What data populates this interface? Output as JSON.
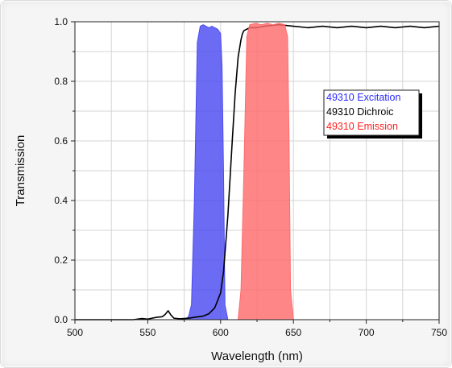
{
  "chart_data": {
    "type": "area",
    "title": "",
    "xlabel": "Wavelength (nm)",
    "ylabel": "Transmission",
    "xlim": [
      500,
      750
    ],
    "ylim": [
      0.0,
      1.0
    ],
    "x_ticks": [
      "500",
      "550",
      "600",
      "650",
      "700",
      "750"
    ],
    "y_ticks": [
      "0.0",
      "0.2",
      "0.4",
      "0.6",
      "0.8",
      "1.0"
    ],
    "grid": true,
    "legend_position": "right",
    "series": [
      {
        "name": "49310 Excitation",
        "style": "filled",
        "color": "#4b4bf2",
        "x": [
          575,
          578,
          580,
          582,
          584,
          586,
          588,
          590,
          592,
          594,
          596,
          598,
          600,
          601,
          602,
          603,
          605
        ],
        "y": [
          0.0,
          0.01,
          0.05,
          0.4,
          0.93,
          0.985,
          0.99,
          0.985,
          0.98,
          0.985,
          0.98,
          0.975,
          0.96,
          0.85,
          0.5,
          0.05,
          0.0
        ]
      },
      {
        "name": "49310 Dichroic",
        "style": "line",
        "color": "#000000",
        "x": [
          500,
          520,
          540,
          546,
          550,
          556,
          560,
          562,
          564,
          566,
          568,
          572,
          578,
          582,
          588,
          592,
          596,
          600,
          602,
          605,
          608,
          610,
          612,
          614,
          615,
          616,
          618,
          620,
          625,
          630,
          640,
          650,
          660,
          670,
          680,
          690,
          700,
          710,
          720,
          730,
          740,
          750
        ],
        "y": [
          0.0,
          0.0,
          0.0,
          0.004,
          0.002,
          0.008,
          0.01,
          0.018,
          0.03,
          0.015,
          0.005,
          0.003,
          0.005,
          0.008,
          0.012,
          0.02,
          0.04,
          0.09,
          0.16,
          0.35,
          0.6,
          0.76,
          0.88,
          0.94,
          0.96,
          0.97,
          0.975,
          0.98,
          0.98,
          0.985,
          0.99,
          0.985,
          0.98,
          0.985,
          0.98,
          0.985,
          0.98,
          0.985,
          0.98,
          0.985,
          0.98,
          0.985
        ]
      },
      {
        "name": "49310 Emission",
        "style": "filled",
        "color": "#ff6b6b",
        "x": [
          612,
          614,
          616,
          618,
          620,
          624,
          628,
          632,
          636,
          640,
          644,
          646,
          647,
          648,
          650
        ],
        "y": [
          0.0,
          0.1,
          0.5,
          0.95,
          0.99,
          0.995,
          0.99,
          0.995,
          0.99,
          0.995,
          0.99,
          0.95,
          0.6,
          0.1,
          0.0
        ]
      }
    ]
  },
  "legend_colors": [
    "#2b2bff",
    "#000000",
    "#ff1f1f"
  ]
}
